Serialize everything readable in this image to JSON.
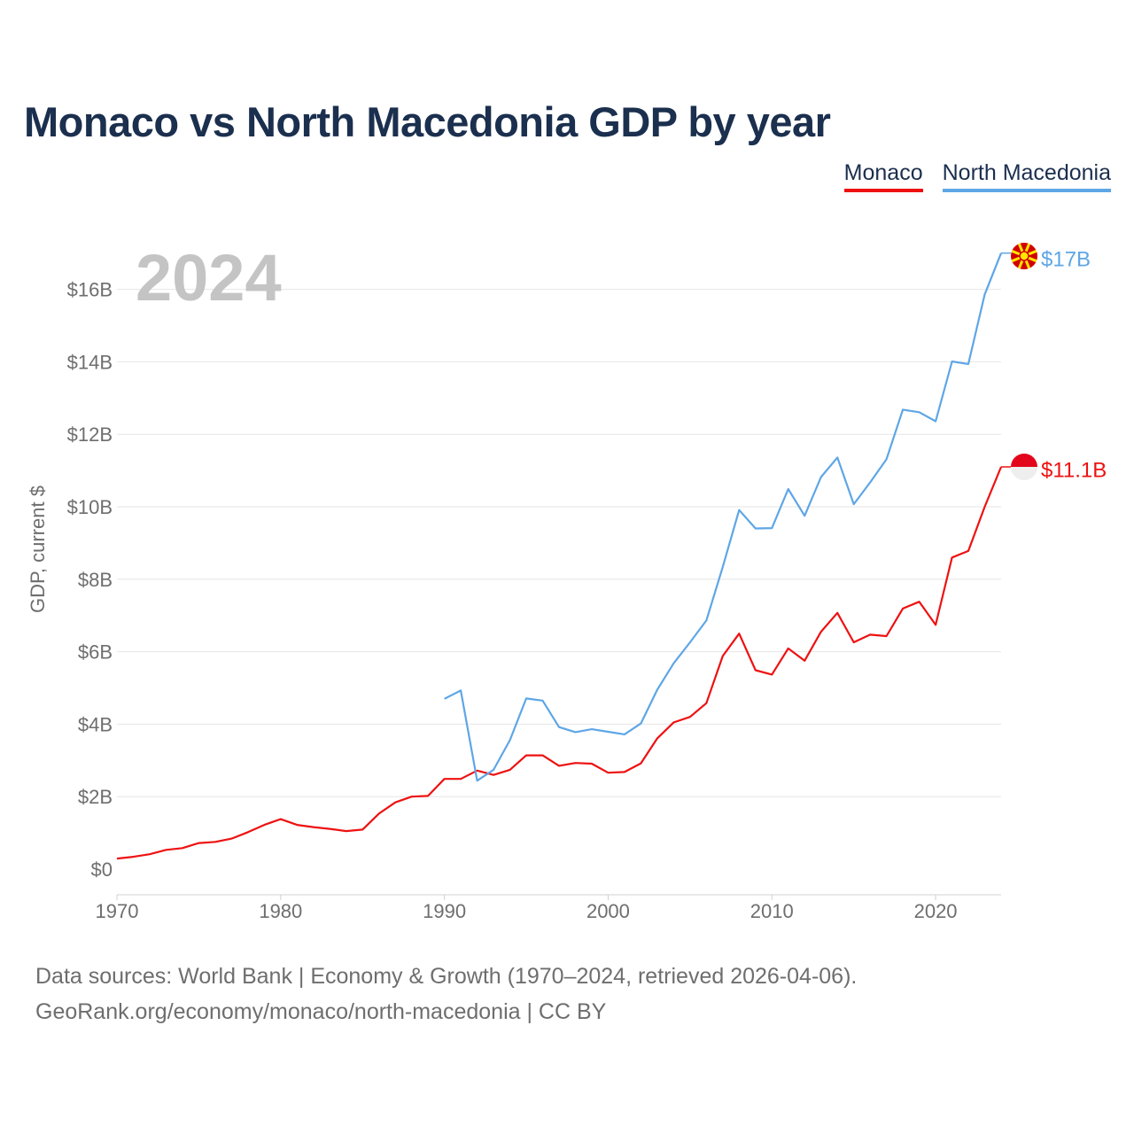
{
  "title": "Monaco vs North Macedonia GDP by year",
  "legend": [
    {
      "name": "Monaco",
      "color": "#ee1111"
    },
    {
      "name": "North Macedonia",
      "color": "#5ea6e6"
    }
  ],
  "footer": {
    "line1": "Data sources: World Bank | Economy & Growth (1970–2024, retrieved 2026-04-06).",
    "line2": "GeoRank.org/economy/monaco/north-macedonia | CC BY"
  },
  "chart_data": {
    "type": "line",
    "title": "Monaco vs North Macedonia GDP by year",
    "year_watermark": "2024",
    "ylabel": "GDP, current $",
    "xlabel": "",
    "xlim": [
      1970,
      2024
    ],
    "ylim": [
      0,
      17.5
    ],
    "x_ticks": [
      1970,
      1980,
      1990,
      2000,
      2010,
      2020
    ],
    "y_ticks": [
      0,
      2,
      4,
      6,
      8,
      10,
      12,
      14,
      16
    ],
    "y_tick_labels": [
      "$0",
      "$2B",
      "$4B",
      "$6B",
      "$8B",
      "$10B",
      "$12B",
      "$14B",
      "$16B"
    ],
    "grid": true,
    "series": [
      {
        "name": "Monaco",
        "color": "#ee1111",
        "end_label": "$11.1B",
        "flag": "monaco-flag",
        "x": [
          1970,
          1971,
          1972,
          1973,
          1974,
          1975,
          1976,
          1977,
          1978,
          1979,
          1980,
          1981,
          1982,
          1983,
          1984,
          1985,
          1986,
          1987,
          1988,
          1989,
          1990,
          1991,
          1992,
          1993,
          1994,
          1995,
          1996,
          1997,
          1998,
          1999,
          2000,
          2001,
          2002,
          2003,
          2004,
          2005,
          2006,
          2007,
          2008,
          2009,
          2010,
          2011,
          2012,
          2013,
          2014,
          2015,
          2016,
          2017,
          2018,
          2019,
          2020,
          2021,
          2022,
          2023,
          2024
        ],
        "values": [
          0.29,
          0.34,
          0.41,
          0.53,
          0.58,
          0.72,
          0.75,
          0.84,
          1.02,
          1.22,
          1.38,
          1.22,
          1.16,
          1.11,
          1.05,
          1.09,
          1.53,
          1.84,
          2.0,
          2.02,
          2.49,
          2.49,
          2.72,
          2.6,
          2.74,
          3.14,
          3.14,
          2.85,
          2.93,
          2.91,
          2.66,
          2.68,
          2.92,
          3.61,
          4.05,
          4.2,
          4.58,
          5.88,
          6.5,
          5.49,
          5.37,
          6.09,
          5.75,
          6.55,
          7.07,
          6.26,
          6.47,
          6.43,
          7.19,
          7.38,
          6.74,
          8.6,
          8.78,
          10.0,
          11.1
        ]
      },
      {
        "name": "North Macedonia",
        "color": "#5ea6e6",
        "end_label": "$17B",
        "flag": "north-macedonia-flag",
        "x": [
          1990,
          1991,
          1992,
          1993,
          1994,
          1995,
          1996,
          1997,
          1998,
          1999,
          2000,
          2001,
          2002,
          2003,
          2004,
          2005,
          2006,
          2007,
          2008,
          2009,
          2010,
          2011,
          2012,
          2013,
          2014,
          2015,
          2016,
          2017,
          2018,
          2019,
          2020,
          2021,
          2022,
          2023,
          2024
        ],
        "values": [
          4.7,
          4.93,
          2.44,
          2.74,
          3.56,
          4.71,
          4.65,
          3.92,
          3.78,
          3.86,
          3.79,
          3.72,
          4.02,
          4.95,
          5.68,
          6.26,
          6.86,
          8.34,
          9.91,
          9.4,
          9.41,
          10.49,
          9.75,
          10.82,
          11.36,
          10.07,
          10.67,
          11.31,
          12.68,
          12.61,
          12.36,
          14.01,
          13.94,
          15.86,
          17.0
        ]
      }
    ]
  }
}
